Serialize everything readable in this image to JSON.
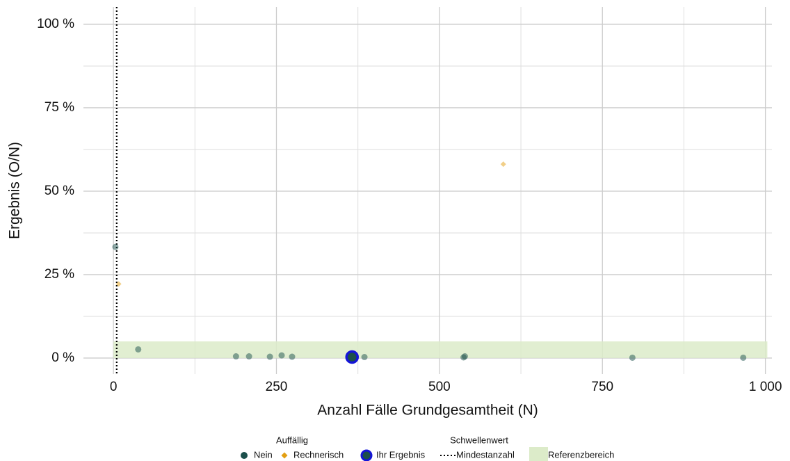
{
  "chart_data": {
    "type": "scatter",
    "x_label": "Anzahl Fälle Grundgesamtheit (N)",
    "y_label": "Ergebnis (O/N)",
    "xlim": [
      -46,
      1010
    ],
    "ylim": [
      -4.8,
      105.2
    ],
    "xticks": [
      0,
      250,
      500,
      750,
      {
        "value": 1000,
        "label": "1 000"
      }
    ],
    "yticks": [
      {
        "value": 0,
        "label": "0 %"
      },
      {
        "value": 25,
        "label": "25 %"
      },
      {
        "value": 50,
        "label": "50 %"
      },
      {
        "value": 75,
        "label": "75 %"
      },
      {
        "value": 100,
        "label": "100 %"
      }
    ],
    "x_minor_grid": [
      125,
      375,
      625,
      875
    ],
    "y_minor_grid": [
      12.5,
      37.5,
      62.5,
      87.5
    ],
    "grid": true,
    "legend_title": "Auffällig",
    "series": [
      {
        "name": "Nein",
        "color": "#1c4f4b",
        "marker": "circle",
        "x": [
          3,
          38,
          188,
          208,
          240,
          258,
          274,
          366,
          385,
          537,
          539,
          796,
          966
        ],
        "values": [
          33.3,
          2.6,
          0.5,
          0.5,
          0.4,
          0.8,
          0.4,
          0.3,
          0.3,
          0.2,
          0.5,
          0.1,
          0.1
        ]
      },
      {
        "name": "Rechnerisch",
        "color": "#e39f12",
        "marker": "diamond",
        "x": [
          598,
          8
        ],
        "values": [
          58.1,
          22.2
        ]
      }
    ],
    "highlight": {
      "name": "Ihr Ergebnis",
      "x": 366,
      "value": 0.3,
      "color": "#1414d8"
    },
    "threshold": {
      "title": "Schwellenwert",
      "name": "Mindestanzahl",
      "x": 5
    },
    "reference": {
      "name": "Referenzbereich",
      "xlim": [
        0,
        1003
      ],
      "ylim": [
        0,
        5
      ],
      "color": "#dcebc9"
    }
  }
}
